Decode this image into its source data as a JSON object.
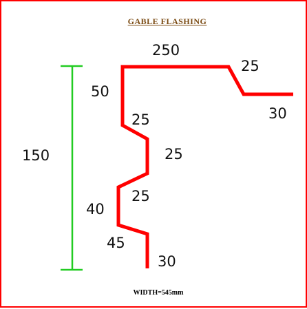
{
  "title": "GABLE FLASHING",
  "footer": "WIDTH=545mm",
  "colors": {
    "profile": "#ff0000",
    "dimension_line": "#22cc22",
    "border": "#ff0000",
    "title": "#7a4a12"
  },
  "segments": {
    "top": "250",
    "drip_slope": "25",
    "drip_return": "30",
    "upper_vertical": "50",
    "first_step": "25",
    "middle_vertical": "25",
    "second_step": "25",
    "lower_vertical": "40",
    "bottom_step": "45",
    "bottom_leg": "30"
  },
  "overall_height": "150"
}
